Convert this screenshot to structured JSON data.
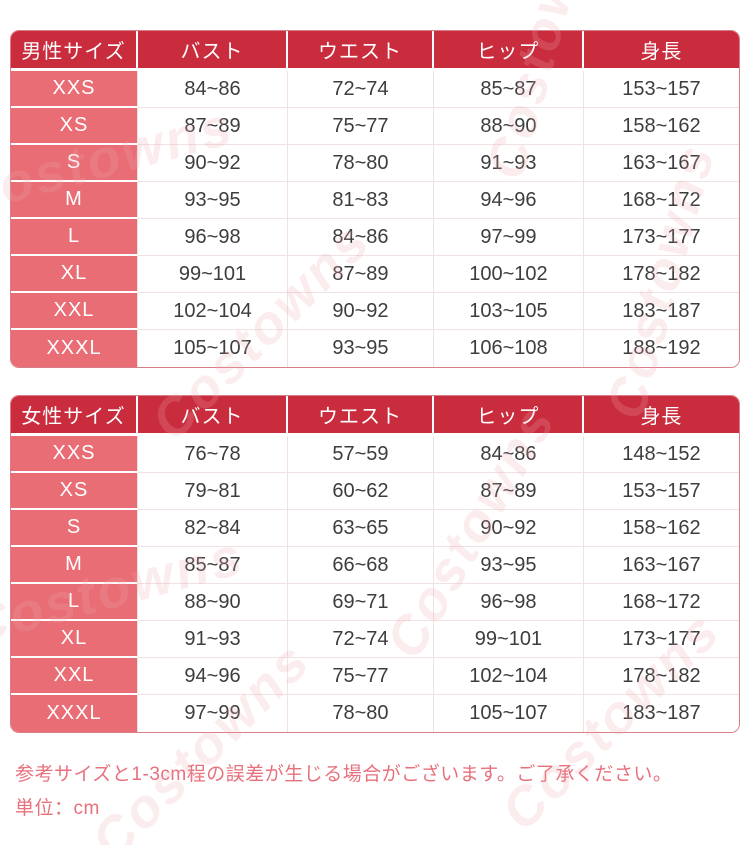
{
  "watermark": {
    "text": "Costowns"
  },
  "colors": {
    "header_bg": "#c92c3c",
    "size_column_bg": "#e96d75",
    "value_text": "#3d3d3d",
    "divider": "#f0e2e2",
    "outer_border": "#d97e87",
    "note_text": "#e7717d"
  },
  "tables": [
    {
      "title": "男性サイズ",
      "columns": [
        "バスト",
        "ウエスト",
        "ヒップ",
        "身長"
      ],
      "rows": [
        {
          "size": "XXS",
          "values": [
            "84~86",
            "72~74",
            "85~87",
            "153~157"
          ]
        },
        {
          "size": "XS",
          "values": [
            "87~89",
            "75~77",
            "88~90",
            "158~162"
          ]
        },
        {
          "size": "S",
          "values": [
            "90~92",
            "78~80",
            "91~93",
            "163~167"
          ]
        },
        {
          "size": "M",
          "values": [
            "93~95",
            "81~83",
            "94~96",
            "168~172"
          ]
        },
        {
          "size": "L",
          "values": [
            "96~98",
            "84~86",
            "97~99",
            "173~177"
          ]
        },
        {
          "size": "XL",
          "values": [
            "99~101",
            "87~89",
            "100~102",
            "178~182"
          ]
        },
        {
          "size": "XXL",
          "values": [
            "102~104",
            "90~92",
            "103~105",
            "183~187"
          ]
        },
        {
          "size": "XXXL",
          "values": [
            "105~107",
            "93~95",
            "106~108",
            "188~192"
          ]
        }
      ]
    },
    {
      "title": "女性サイズ",
      "columns": [
        "バスト",
        "ウエスト",
        "ヒップ",
        "身長"
      ],
      "rows": [
        {
          "size": "XXS",
          "values": [
            "76~78",
            "57~59",
            "84~86",
            "148~152"
          ]
        },
        {
          "size": "XS",
          "values": [
            "79~81",
            "60~62",
            "87~89",
            "153~157"
          ]
        },
        {
          "size": "S",
          "values": [
            "82~84",
            "63~65",
            "90~92",
            "158~162"
          ]
        },
        {
          "size": "M",
          "values": [
            "85~87",
            "66~68",
            "93~95",
            "163~167"
          ]
        },
        {
          "size": "L",
          "values": [
            "88~90",
            "69~71",
            "96~98",
            "168~172"
          ]
        },
        {
          "size": "XL",
          "values": [
            "91~93",
            "72~74",
            "99~101",
            "173~177"
          ]
        },
        {
          "size": "XXL",
          "values": [
            "94~96",
            "75~77",
            "102~104",
            "178~182"
          ]
        },
        {
          "size": "XXXL",
          "values": [
            "97~99",
            "78~80",
            "105~107",
            "183~187"
          ]
        }
      ]
    }
  ],
  "notes": [
    "参考サイズと1-3cm程の誤差が生じる場合がございます。ご了承ください。",
    "単位：cm"
  ],
  "chart_data": [
    {
      "type": "table",
      "title": "男性サイズ",
      "columns": [
        "サイズ",
        "バスト",
        "ウエスト",
        "ヒップ",
        "身長"
      ],
      "rows": [
        [
          "XXS",
          "84~86",
          "72~74",
          "85~87",
          "153~157"
        ],
        [
          "XS",
          "87~89",
          "75~77",
          "88~90",
          "158~162"
        ],
        [
          "S",
          "90~92",
          "78~80",
          "91~93",
          "163~167"
        ],
        [
          "M",
          "93~95",
          "81~83",
          "94~96",
          "168~172"
        ],
        [
          "L",
          "96~98",
          "84~86",
          "97~99",
          "173~177"
        ],
        [
          "XL",
          "99~101",
          "87~89",
          "100~102",
          "178~182"
        ],
        [
          "XXL",
          "102~104",
          "90~92",
          "103~105",
          "183~187"
        ],
        [
          "XXXL",
          "105~107",
          "93~95",
          "106~108",
          "188~192"
        ]
      ]
    },
    {
      "type": "table",
      "title": "女性サイズ",
      "columns": [
        "サイズ",
        "バスト",
        "ウエスト",
        "ヒップ",
        "身長"
      ],
      "rows": [
        [
          "XXS",
          "76~78",
          "57~59",
          "84~86",
          "148~152"
        ],
        [
          "XS",
          "79~81",
          "60~62",
          "87~89",
          "153~157"
        ],
        [
          "S",
          "82~84",
          "63~65",
          "90~92",
          "158~162"
        ],
        [
          "M",
          "85~87",
          "66~68",
          "93~95",
          "163~167"
        ],
        [
          "L",
          "88~90",
          "69~71",
          "96~98",
          "168~172"
        ],
        [
          "XL",
          "91~93",
          "72~74",
          "99~101",
          "173~177"
        ],
        [
          "XXL",
          "94~96",
          "75~77",
          "102~104",
          "178~182"
        ],
        [
          "XXXL",
          "97~99",
          "78~80",
          "105~107",
          "183~187"
        ]
      ]
    }
  ]
}
